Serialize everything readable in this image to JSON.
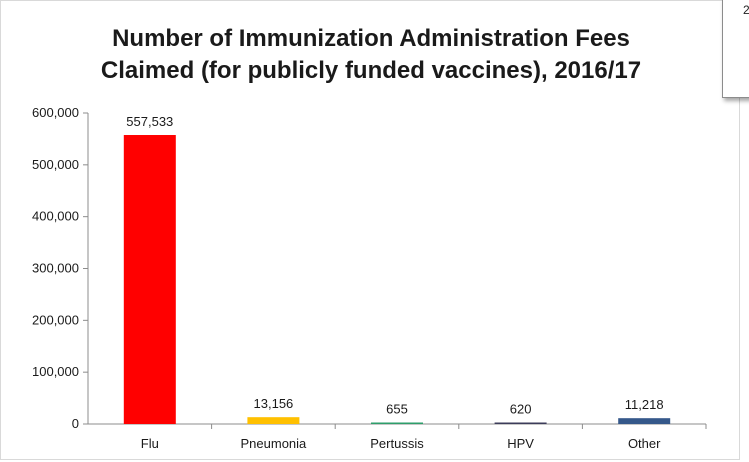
{
  "chart_data": {
    "type": "bar",
    "title_lines": [
      "Number of Immunization Administration Fees",
      "Claimed (for publicly funded vaccines), 2016/17"
    ],
    "categories": [
      "Flu",
      "Pneumonia",
      "Pertussis",
      "HPV",
      "Other"
    ],
    "values": [
      557533,
      13156,
      655,
      620,
      11218
    ],
    "data_labels": [
      "557,533",
      "13,156",
      "655",
      "620",
      "11,218"
    ],
    "colors": [
      "#ff0000",
      "#ffc000",
      "#2e9e6b",
      "#3c3c5a",
      "#35588a"
    ],
    "ylim": [
      0,
      600000
    ],
    "yticks": [
      0,
      100000,
      200000,
      300000,
      400000,
      500000,
      600000
    ],
    "ytick_labels": [
      "0",
      "100,000",
      "200,000",
      "300,000",
      "400,000",
      "500,000",
      "600,000"
    ],
    "xlabel": "",
    "ylabel": "",
    "grid": false,
    "legend": "none"
  },
  "callout": {
    "text": "2"
  }
}
